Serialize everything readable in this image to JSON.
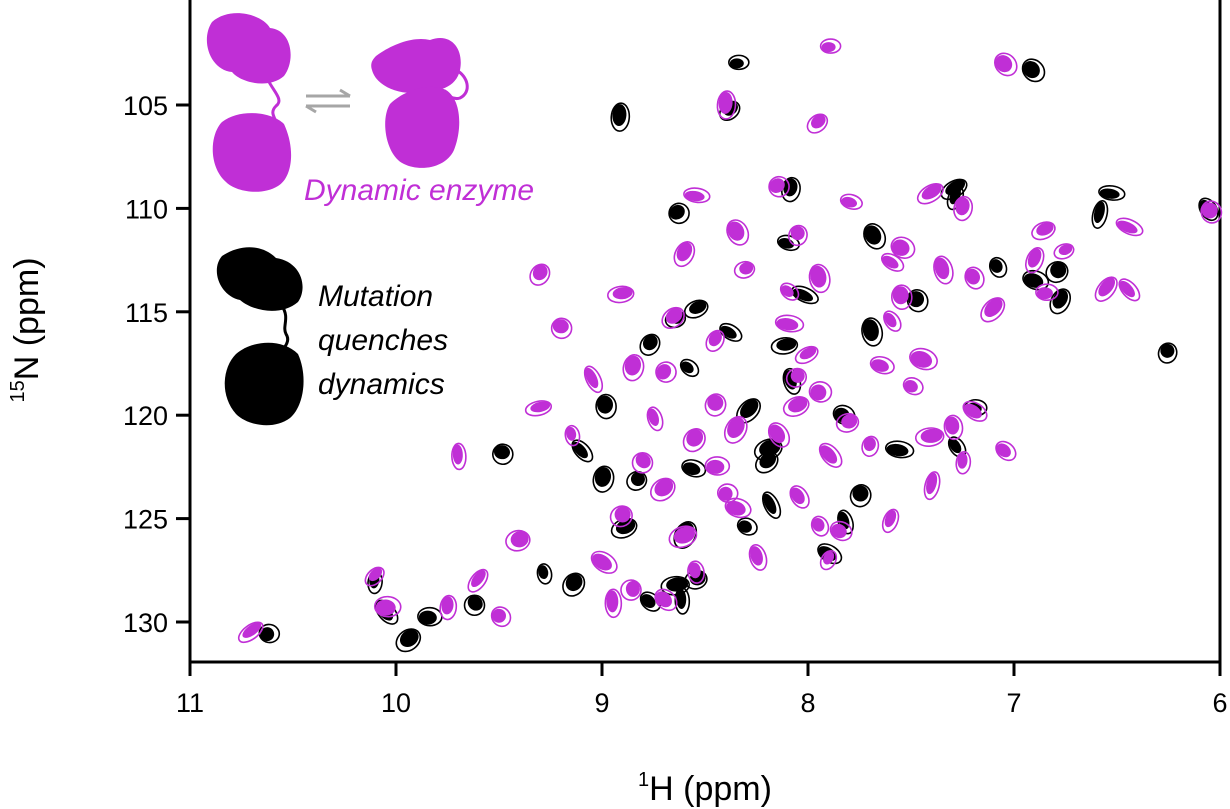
{
  "colors": {
    "dynamic": "#c02fd6",
    "mutant": "#000000",
    "exchange_arrow": "#a6a6a6",
    "background": "#ffffff"
  },
  "chart_data": {
    "type": "scatter",
    "title": "",
    "xlabel": {
      "superscript": "1",
      "text": "H (ppm)"
    },
    "ylabel": {
      "superscript": "15",
      "text": "N (ppm)"
    },
    "xlim": [
      11,
      6
    ],
    "ylim": [
      132,
      100
    ],
    "x_reversed": true,
    "y_reversed": true,
    "x_ticks": [
      "11",
      "10",
      "9",
      "8",
      "7",
      "6"
    ],
    "x_tick_values": [
      11,
      10,
      9,
      8,
      7,
      6
    ],
    "y_ticks": [
      "105",
      "110",
      "115",
      "120",
      "125",
      "130"
    ],
    "y_tick_values": [
      105,
      110,
      115,
      120,
      125,
      130
    ],
    "grid": false,
    "legend": {
      "position": "top-left",
      "entries": [
        {
          "label": "Dynamic enzyme",
          "series": "dynamic",
          "icon": "dynamic-enzyme-icon"
        },
        {
          "label_lines": [
            "Mutation",
            "quenches",
            "dynamics"
          ],
          "series": "mutant",
          "icon": "mutant-enzyme-icon"
        }
      ]
    },
    "series": [
      {
        "key": "mutant",
        "color": "#000000",
        "points": [
          [
            8.36,
            102.9
          ],
          [
            6.93,
            103.2
          ],
          [
            8.93,
            105.4
          ],
          [
            8.39,
            105.1
          ],
          [
            6.55,
            109.2
          ],
          [
            8.65,
            110.1
          ],
          [
            8.1,
            108.9
          ],
          [
            7.3,
            108.9
          ],
          [
            8.12,
            111.6
          ],
          [
            7.7,
            111.2
          ],
          [
            6.27,
            116.8
          ],
          [
            8.55,
            114.7
          ],
          [
            8.04,
            114.1
          ],
          [
            7.49,
            114.3
          ],
          [
            6.79,
            114.3
          ],
          [
            8.65,
            115.2
          ],
          [
            8.4,
            115.9
          ],
          [
            7.71,
            115.8
          ],
          [
            8.78,
            116.4
          ],
          [
            8.12,
            116.5
          ],
          [
            8.6,
            117.6
          ],
          [
            9.0,
            119.4
          ],
          [
            8.3,
            119.6
          ],
          [
            7.21,
            119.6
          ],
          [
            9.12,
            121.6
          ],
          [
            9.5,
            121.7
          ],
          [
            8.21,
            122.1
          ],
          [
            7.58,
            121.6
          ],
          [
            7.3,
            121.4
          ],
          [
            9.01,
            122.9
          ],
          [
            8.84,
            123.0
          ],
          [
            8.58,
            122.5
          ],
          [
            8.2,
            124.2
          ],
          [
            7.76,
            123.7
          ],
          [
            8.9,
            125.3
          ],
          [
            8.32,
            125.3
          ],
          [
            7.84,
            125.0
          ],
          [
            8.61,
            125.6
          ],
          [
            8.55,
            127.8
          ],
          [
            7.92,
            126.6
          ],
          [
            9.3,
            127.5
          ],
          [
            9.15,
            128.0
          ],
          [
            8.65,
            128.1
          ],
          [
            8.79,
            128.9
          ],
          [
            8.63,
            128.8
          ],
          [
            9.63,
            129.0
          ],
          [
            9.86,
            129.7
          ],
          [
            10.07,
            129.4
          ],
          [
            10.12,
            127.9
          ],
          [
            9.95,
            130.7
          ],
          [
            10.64,
            130.5
          ],
          [
            6.08,
            109.9
          ],
          [
            6.6,
            110.1
          ],
          [
            6.8,
            112.9
          ],
          [
            6.92,
            113.4
          ],
          [
            7.1,
            112.7
          ],
          [
            7.3,
            109.3
          ],
          [
            8.2,
            121.5
          ],
          [
            7.85,
            119.9
          ],
          [
            8.1,
            118.2
          ]
        ]
      },
      {
        "key": "dynamic",
        "color": "#c02fd6",
        "points": [
          [
            7.9,
            102.2
          ],
          [
            7.05,
            103.0
          ],
          [
            8.4,
            104.9
          ],
          [
            7.95,
            105.8
          ],
          [
            8.55,
            109.4
          ],
          [
            8.15,
            108.9
          ],
          [
            7.25,
            109.9
          ],
          [
            7.4,
            109.2
          ],
          [
            7.8,
            109.7
          ],
          [
            8.35,
            111.1
          ],
          [
            8.05,
            111.2
          ],
          [
            6.85,
            111.0
          ],
          [
            6.45,
            110.9
          ],
          [
            6.05,
            110.1
          ],
          [
            8.6,
            112.1
          ],
          [
            8.3,
            112.9
          ],
          [
            7.6,
            112.6
          ],
          [
            7.95,
            113.3
          ],
          [
            9.3,
            113.1
          ],
          [
            8.9,
            114.1
          ],
          [
            8.1,
            114.0
          ],
          [
            7.55,
            114.2
          ],
          [
            7.1,
            114.8
          ],
          [
            6.85,
            114.1
          ],
          [
            6.45,
            113.9
          ],
          [
            9.2,
            115.7
          ],
          [
            8.65,
            115.2
          ],
          [
            8.1,
            115.6
          ],
          [
            7.6,
            115.4
          ],
          [
            8.85,
            117.6
          ],
          [
            8.05,
            118.1
          ],
          [
            7.65,
            117.6
          ],
          [
            9.05,
            118.2
          ],
          [
            8.45,
            119.4
          ],
          [
            8.05,
            119.5
          ],
          [
            7.5,
            118.6
          ],
          [
            8.75,
            120.1
          ],
          [
            8.35,
            120.6
          ],
          [
            7.8,
            120.3
          ],
          [
            7.2,
            119.8
          ],
          [
            9.15,
            120.9
          ],
          [
            8.55,
            121.1
          ],
          [
            7.4,
            121.0
          ],
          [
            7.05,
            121.7
          ],
          [
            9.7,
            121.9
          ],
          [
            8.8,
            122.2
          ],
          [
            8.45,
            122.5
          ],
          [
            7.9,
            121.9
          ],
          [
            7.25,
            122.2
          ],
          [
            8.7,
            123.5
          ],
          [
            8.4,
            123.8
          ],
          [
            8.05,
            123.9
          ],
          [
            7.4,
            123.3
          ],
          [
            8.9,
            124.8
          ],
          [
            8.35,
            124.5
          ],
          [
            7.95,
            125.3
          ],
          [
            7.6,
            125.0
          ],
          [
            8.6,
            125.8
          ],
          [
            7.85,
            125.6
          ],
          [
            8.25,
            126.8
          ],
          [
            7.9,
            126.9
          ],
          [
            9.4,
            126.0
          ],
          [
            9.0,
            127.1
          ],
          [
            8.55,
            127.5
          ],
          [
            9.6,
            127.9
          ],
          [
            8.85,
            128.4
          ],
          [
            8.7,
            128.9
          ],
          [
            8.95,
            129.0
          ],
          [
            10.1,
            127.7
          ],
          [
            10.05,
            129.3
          ],
          [
            9.5,
            129.7
          ],
          [
            9.75,
            129.2
          ],
          [
            10.7,
            130.4
          ],
          [
            7.95,
            118.9
          ],
          [
            8.15,
            120.9
          ],
          [
            7.7,
            121.4
          ],
          [
            8.0,
            117.0
          ],
          [
            7.45,
            117.3
          ],
          [
            7.2,
            113.3
          ],
          [
            6.9,
            112.4
          ],
          [
            6.75,
            112.0
          ],
          [
            7.55,
            111.9
          ],
          [
            7.35,
            112.9
          ],
          [
            8.45,
            116.3
          ],
          [
            9.3,
            119.6
          ],
          [
            8.7,
            117.9
          ],
          [
            7.3,
            120.5
          ],
          [
            6.55,
            113.8
          ]
        ]
      }
    ]
  },
  "legend_labels": {
    "dynamic": "Dynamic enzyme",
    "mutant_line1": "Mutation",
    "mutant_line2": "quenches",
    "mutant_line3": "dynamics"
  },
  "axis_titles": {
    "x_sup": "1",
    "x_text": "H (ppm)",
    "y_sup": "15",
    "y_text": "N (ppm)"
  }
}
